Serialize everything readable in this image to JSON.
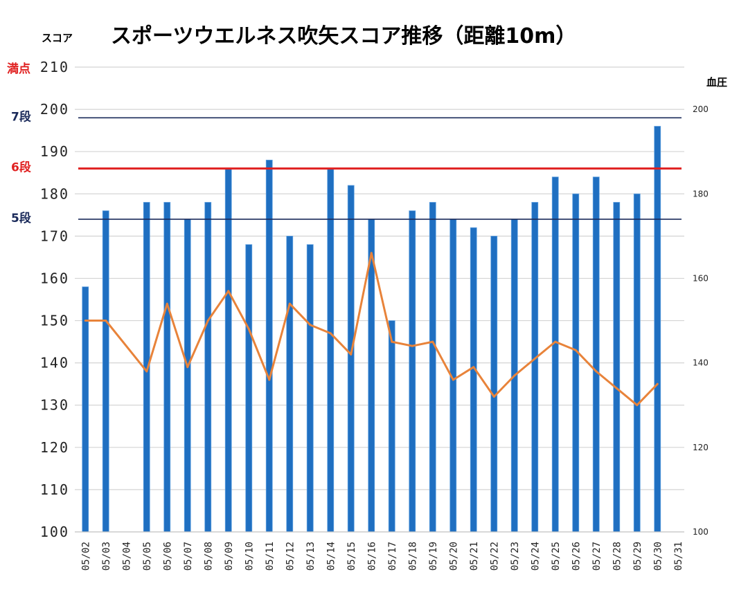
{
  "chart_data": {
    "type": "bar",
    "title": "スポーツウエルネス吹矢スコア推移（距離10m）",
    "ylabel": "スコア",
    "y2label": "血圧",
    "ylim": [
      100,
      210
    ],
    "y2lim": [
      100,
      210
    ],
    "y_ticks": [
      210,
      200,
      190,
      180,
      170,
      160,
      150,
      140,
      130,
      120,
      110,
      100
    ],
    "y2_ticks": [
      200,
      180,
      160,
      140,
      120,
      100
    ],
    "categories": [
      "05/02",
      "05/03",
      "05/04",
      "05/05",
      "05/06",
      "05/07",
      "05/08",
      "05/09",
      "05/10",
      "05/11",
      "05/12",
      "05/13",
      "05/14",
      "05/15",
      "05/16",
      "05/17",
      "05/18",
      "05/19",
      "05/20",
      "05/21",
      "05/22",
      "05/23",
      "05/24",
      "05/25",
      "05/26",
      "05/27",
      "05/28",
      "05/29",
      "05/30",
      "05/31"
    ],
    "series": [
      {
        "kind": "bar",
        "axis": "left",
        "color": "#1f6fc1",
        "values": [
          158,
          176,
          null,
          178,
          178,
          174,
          178,
          186,
          168,
          188,
          170,
          168,
          186,
          182,
          174,
          150,
          176,
          178,
          174,
          172,
          170,
          174,
          178,
          184,
          180,
          184,
          178,
          180,
          196,
          null
        ]
      },
      {
        "kind": "line",
        "axis": "right",
        "color": "#e8833a",
        "values": [
          150,
          150,
          null,
          138,
          154,
          139,
          150,
          157,
          148,
          136,
          154,
          149,
          147,
          142,
          166,
          145,
          144,
          145,
          136,
          139,
          132,
          137,
          141,
          145,
          143,
          138,
          134,
          130,
          135,
          null
        ]
      }
    ],
    "reference_lines": [
      {
        "label": "満点",
        "value": 210,
        "color": "#e02020",
        "style": "grid"
      },
      {
        "label": "7段",
        "value": 198,
        "color": "#1a2a5a",
        "style": "line"
      },
      {
        "label": "6段",
        "value": 186,
        "color": "#e02020",
        "style": "thick"
      },
      {
        "label": "5段",
        "value": 174,
        "color": "#1a2a5a",
        "style": "line"
      }
    ],
    "grid": true
  }
}
